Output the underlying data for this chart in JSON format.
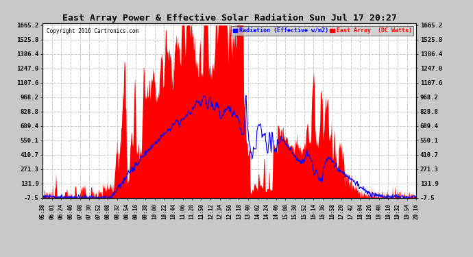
{
  "title": "East Array Power & Effective Solar Radiation Sun Jul 17 20:27",
  "copyright": "Copyright 2016 Cartronics.com",
  "legend_radiation": "Radiation (Effective w/m2)",
  "legend_east": "East Array  (DC Watts)",
  "ylabel_ticks": [
    -7.5,
    131.9,
    271.3,
    410.7,
    550.1,
    689.4,
    828.8,
    968.2,
    1107.6,
    1247.0,
    1386.4,
    1525.8,
    1665.2
  ],
  "xlabels": [
    "05:38",
    "06:01",
    "06:24",
    "06:46",
    "07:08",
    "07:30",
    "07:52",
    "08:08",
    "08:32",
    "08:54",
    "09:16",
    "09:38",
    "10:00",
    "10:22",
    "10:44",
    "11:06",
    "11:28",
    "11:50",
    "12:12",
    "12:34",
    "12:56",
    "13:18",
    "13:40",
    "14:02",
    "14:24",
    "14:46",
    "15:08",
    "15:30",
    "15:52",
    "16:14",
    "16:36",
    "16:58",
    "17:20",
    "17:42",
    "18:04",
    "18:26",
    "18:48",
    "19:10",
    "19:32",
    "19:54",
    "20:16"
  ],
  "bg_color": "#c8c8c8",
  "plot_bg_color": "#ffffff",
  "grid_color": "#c8c8c8",
  "red_fill_color": "#ff0000",
  "blue_line_color": "#0000ff",
  "title_color": "#000000",
  "ymin": -7.5,
  "ymax": 1665.2
}
